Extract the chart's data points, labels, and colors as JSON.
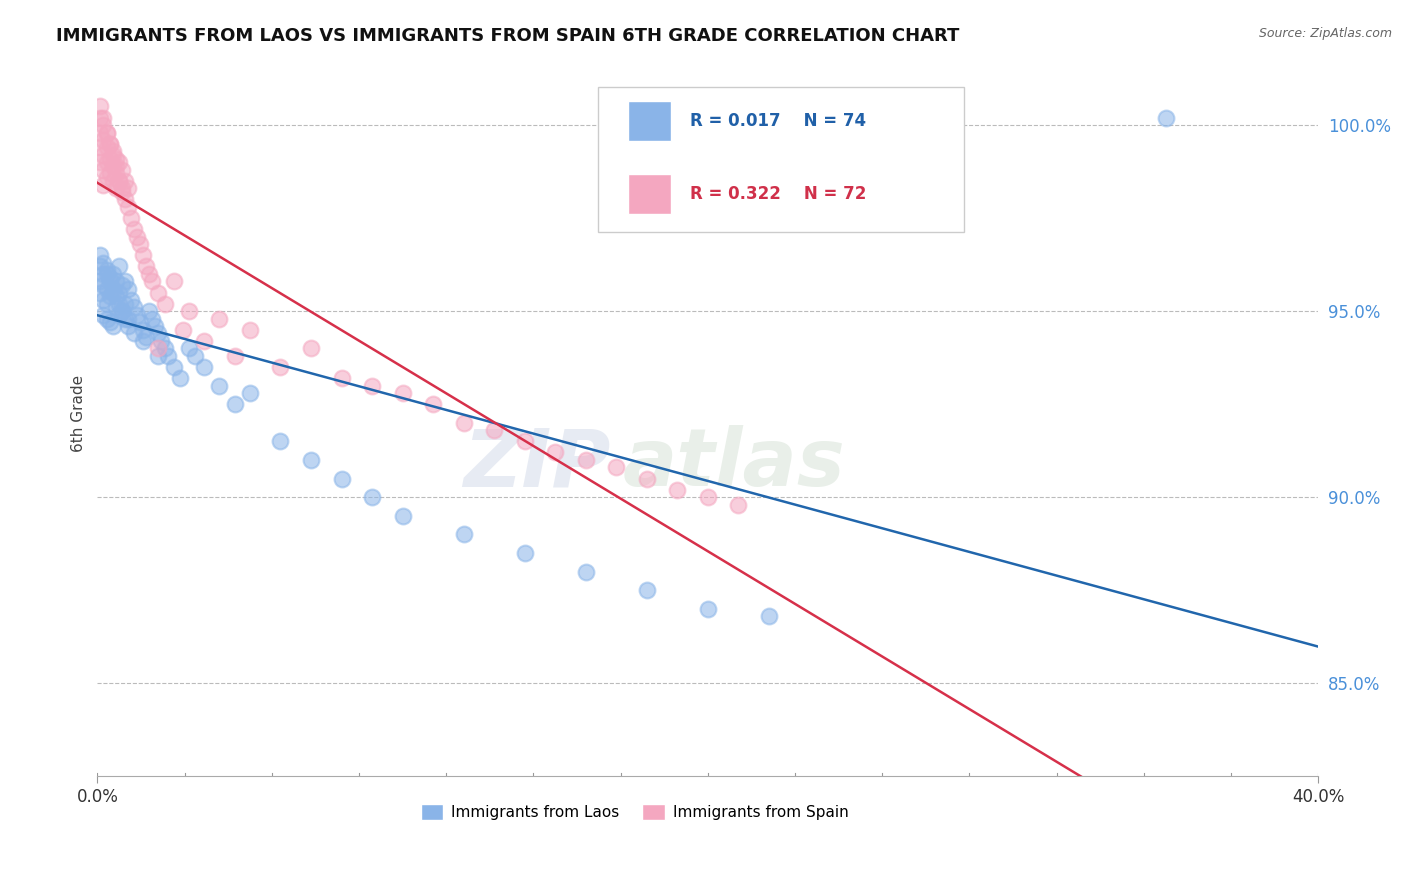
{
  "title": "IMMIGRANTS FROM LAOS VS IMMIGRANTS FROM SPAIN 6TH GRADE CORRELATION CHART",
  "source": "Source: ZipAtlas.com",
  "ylabel": "6th Grade",
  "xlim": [
    0.0,
    0.4
  ],
  "ylim": [
    82.5,
    102.0
  ],
  "x_ticks": [
    0.0,
    0.4
  ],
  "x_tick_labels": [
    "0.0%",
    "40.0%"
  ],
  "y_ticks": [
    85.0,
    90.0,
    95.0,
    100.0
  ],
  "y_tick_labels": [
    "85.0%",
    "90.0%",
    "95.0%",
    "100.0%"
  ],
  "legend_R_laos": "R = 0.017",
  "legend_N_laos": "N = 74",
  "legend_R_spain": "R = 0.322",
  "legend_N_spain": "N = 72",
  "color_laos": "#8ab4e8",
  "color_spain": "#f4a7c0",
  "line_color_laos": "#2166ac",
  "line_color_spain": "#d6304a",
  "watermark_zip": "ZIP",
  "watermark_atlas": "atlas",
  "background_color": "#ffffff",
  "laos_x": [
    0.001,
    0.001,
    0.001,
    0.002,
    0.002,
    0.002,
    0.002,
    0.003,
    0.003,
    0.003,
    0.003,
    0.004,
    0.004,
    0.004,
    0.005,
    0.005,
    0.005,
    0.006,
    0.006,
    0.007,
    0.007,
    0.007,
    0.008,
    0.008,
    0.009,
    0.009,
    0.01,
    0.01,
    0.011,
    0.012,
    0.013,
    0.014,
    0.015,
    0.016,
    0.017,
    0.018,
    0.019,
    0.02,
    0.021,
    0.022,
    0.023,
    0.025,
    0.027,
    0.03,
    0.032,
    0.035,
    0.04,
    0.045,
    0.05,
    0.06,
    0.07,
    0.08,
    0.09,
    0.1,
    0.12,
    0.14,
    0.16,
    0.18,
    0.2,
    0.22,
    0.001,
    0.002,
    0.003,
    0.004,
    0.005,
    0.006,
    0.007,
    0.008,
    0.009,
    0.01,
    0.012,
    0.015,
    0.02,
    0.35
  ],
  "laos_y": [
    96.2,
    95.8,
    95.5,
    96.0,
    95.7,
    95.3,
    94.9,
    96.1,
    95.6,
    95.2,
    94.8,
    95.9,
    95.4,
    94.7,
    96.0,
    95.5,
    94.6,
    95.8,
    95.1,
    96.2,
    95.5,
    94.9,
    95.7,
    95.0,
    95.8,
    95.2,
    95.6,
    94.8,
    95.3,
    95.1,
    94.9,
    94.7,
    94.5,
    94.3,
    95.0,
    94.8,
    94.6,
    94.4,
    94.2,
    94.0,
    93.8,
    93.5,
    93.2,
    94.0,
    93.8,
    93.5,
    93.0,
    92.5,
    92.8,
    91.5,
    91.0,
    90.5,
    90.0,
    89.5,
    89.0,
    88.5,
    88.0,
    87.5,
    87.0,
    86.8,
    96.5,
    96.3,
    96.0,
    95.8,
    95.6,
    95.4,
    95.2,
    95.0,
    94.8,
    94.6,
    94.4,
    94.2,
    93.8,
    100.2
  ],
  "spain_x": [
    0.001,
    0.001,
    0.001,
    0.001,
    0.002,
    0.002,
    0.002,
    0.002,
    0.002,
    0.003,
    0.003,
    0.003,
    0.003,
    0.004,
    0.004,
    0.004,
    0.005,
    0.005,
    0.005,
    0.006,
    0.006,
    0.006,
    0.007,
    0.007,
    0.008,
    0.008,
    0.009,
    0.009,
    0.01,
    0.01,
    0.011,
    0.012,
    0.013,
    0.014,
    0.015,
    0.016,
    0.017,
    0.018,
    0.02,
    0.022,
    0.025,
    0.028,
    0.03,
    0.035,
    0.04,
    0.045,
    0.05,
    0.06,
    0.07,
    0.08,
    0.09,
    0.1,
    0.11,
    0.12,
    0.13,
    0.14,
    0.15,
    0.16,
    0.17,
    0.18,
    0.19,
    0.2,
    0.21,
    0.001,
    0.002,
    0.003,
    0.004,
    0.005,
    0.006,
    0.007,
    0.008,
    0.02
  ],
  "spain_y": [
    100.2,
    99.8,
    99.4,
    99.0,
    100.0,
    99.6,
    99.2,
    98.8,
    98.4,
    99.8,
    99.4,
    99.0,
    98.6,
    99.5,
    99.1,
    98.7,
    99.3,
    98.9,
    98.5,
    99.1,
    98.7,
    98.3,
    99.0,
    98.5,
    98.8,
    98.3,
    98.5,
    98.0,
    98.3,
    97.8,
    97.5,
    97.2,
    97.0,
    96.8,
    96.5,
    96.2,
    96.0,
    95.8,
    95.5,
    95.2,
    95.8,
    94.5,
    95.0,
    94.2,
    94.8,
    93.8,
    94.5,
    93.5,
    94.0,
    93.2,
    93.0,
    92.8,
    92.5,
    92.0,
    91.8,
    91.5,
    91.2,
    91.0,
    90.8,
    90.5,
    90.2,
    90.0,
    89.8,
    100.5,
    100.2,
    99.8,
    99.5,
    99.2,
    98.9,
    98.5,
    98.2,
    94.0
  ]
}
